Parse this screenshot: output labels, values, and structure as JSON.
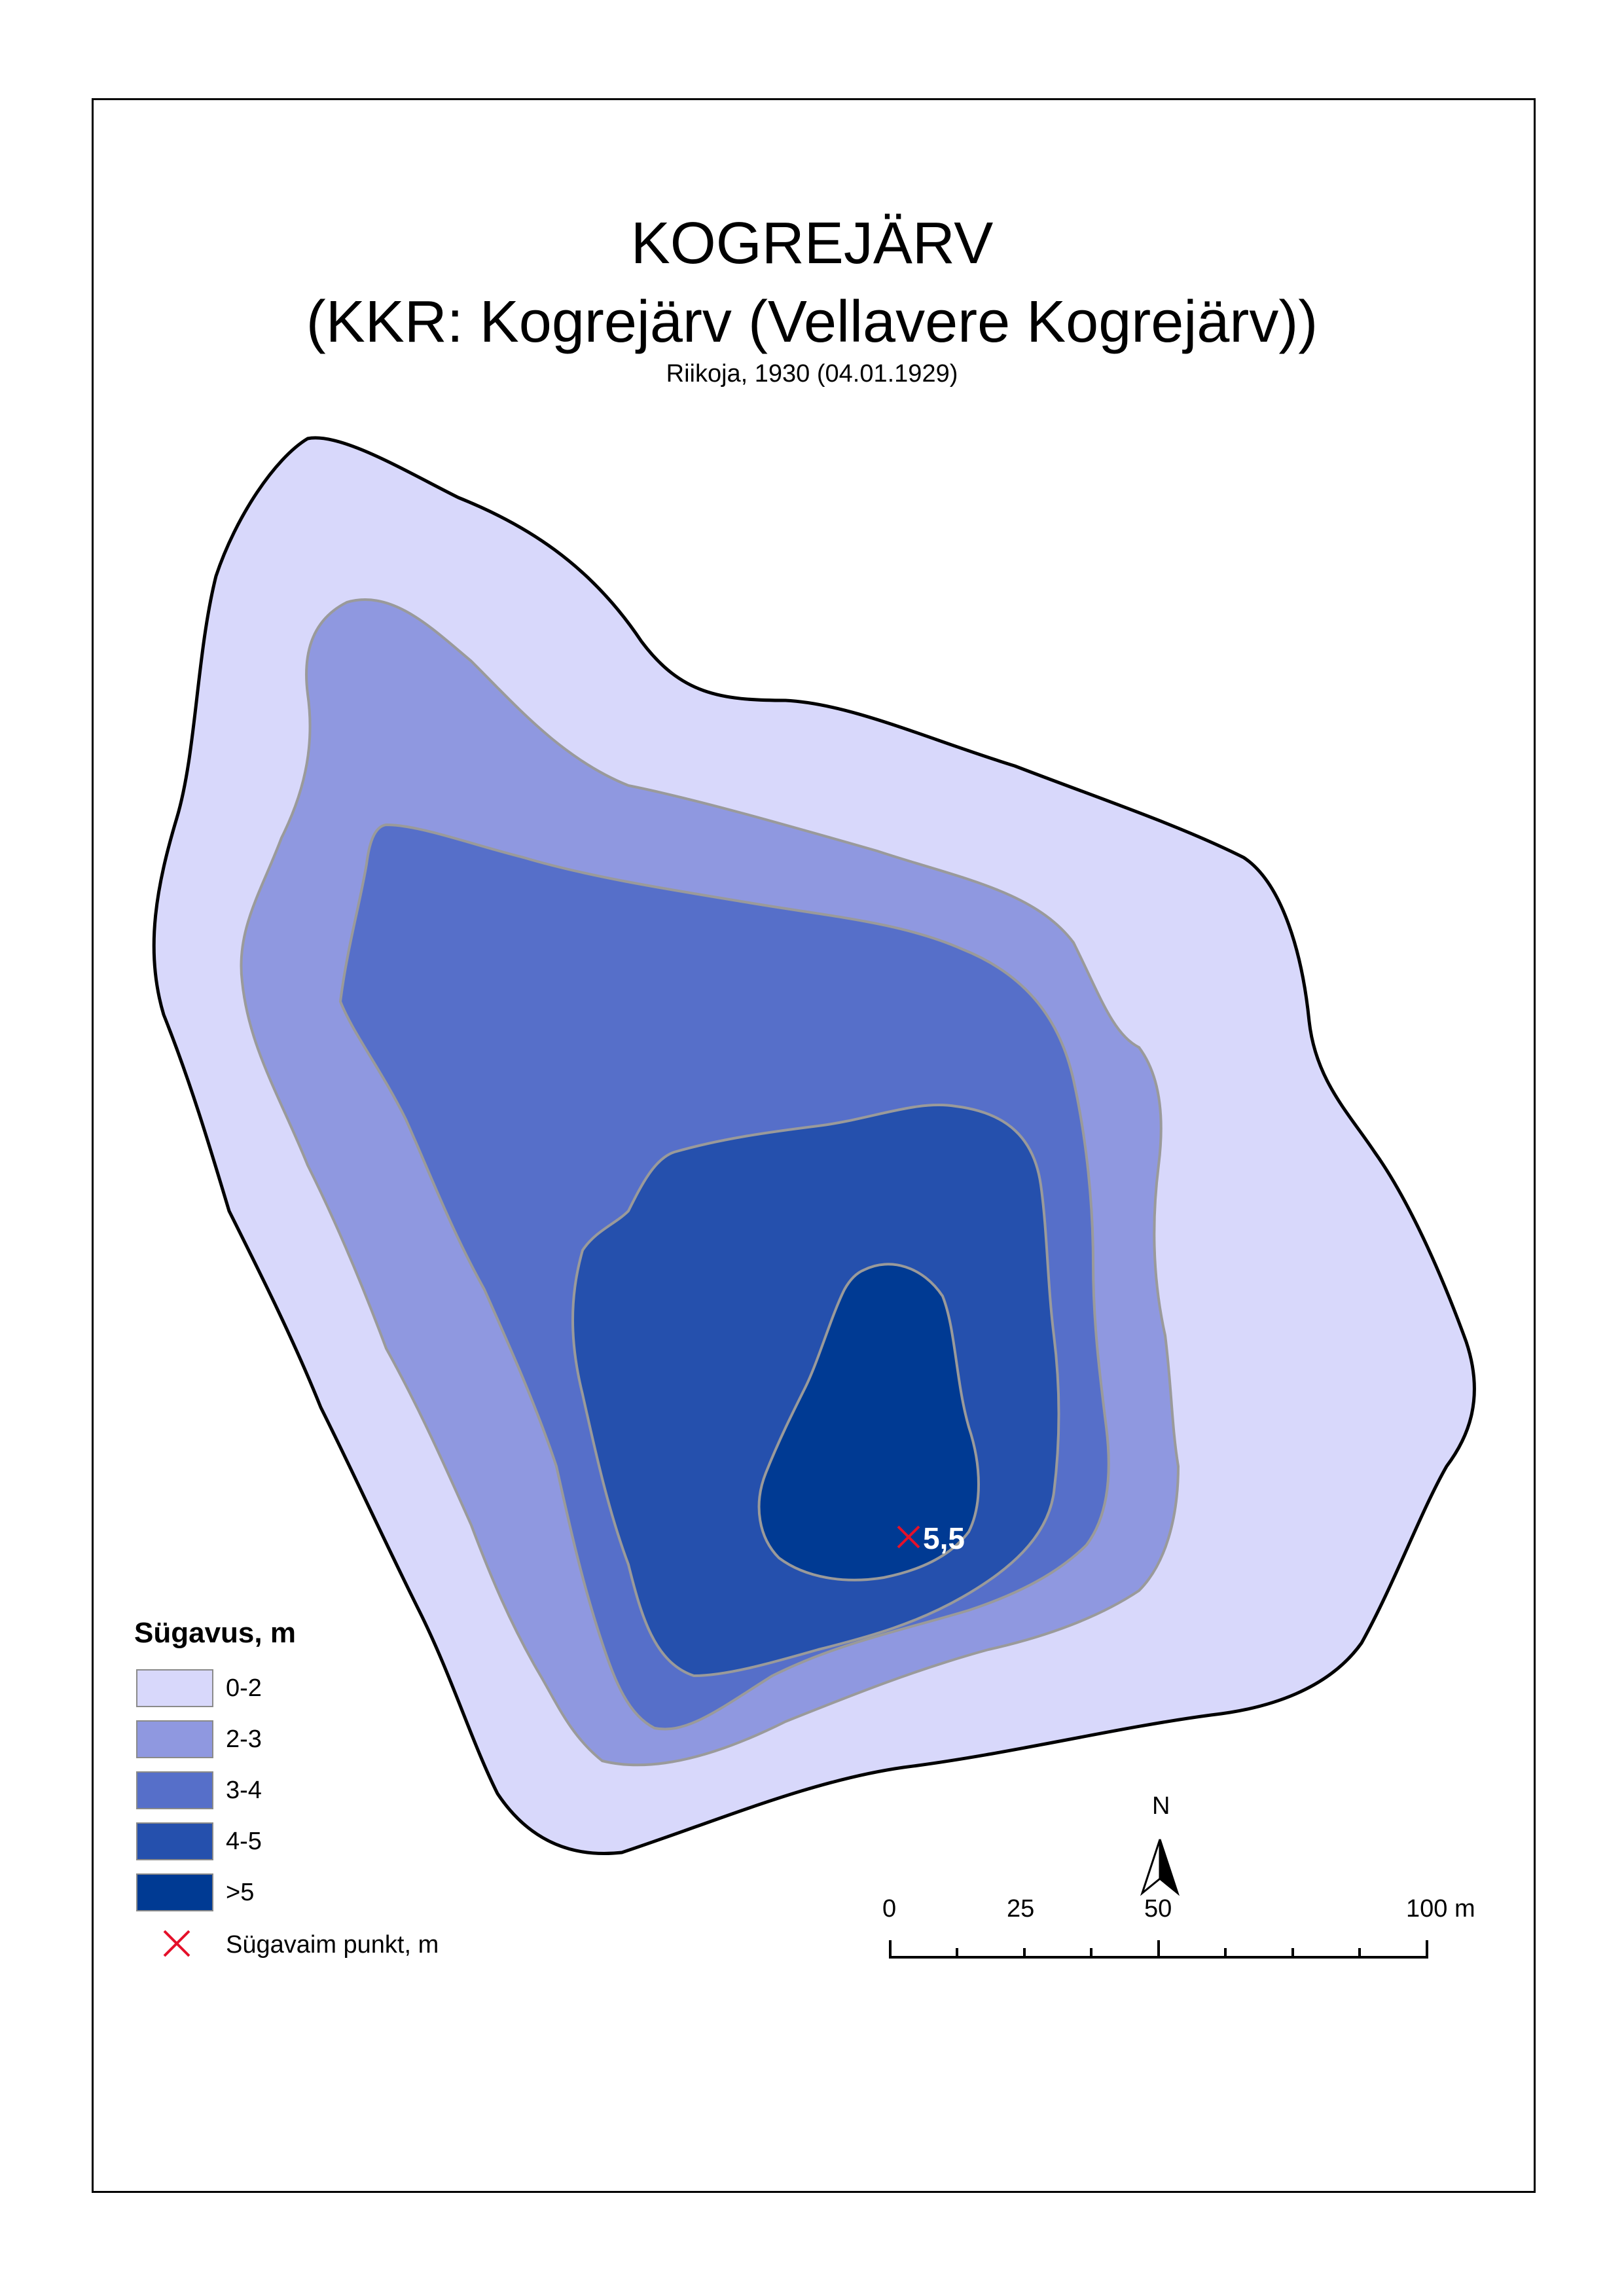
{
  "map": {
    "title": "KOGREJÄRV",
    "subtitle": "(KKR: Kogrejärv (Vellavere Kogrejärv))",
    "source": "Riikoja, 1930 (04.01.1929)",
    "deepest_point_label": "5,5",
    "deepest_point_value_m": 5.5
  },
  "legend": {
    "title": "Sügavus, m",
    "classes": [
      {
        "label": "0-2",
        "color": "#d8d8fb"
      },
      {
        "label": "2-3",
        "color": "#8f98e0"
      },
      {
        "label": "3-4",
        "color": "#566fc9"
      },
      {
        "label": "4-5",
        "color": "#2550ad"
      },
      {
        "label": ">5",
        "color": "#003a93"
      }
    ],
    "deepest_point": {
      "label": "Sügavaim punkt, m",
      "color": "#e5102a",
      "icon": "x-mark-icon"
    }
  },
  "scale_bar": {
    "labels": [
      "0",
      "25",
      "50",
      "100 m"
    ],
    "values_m": [
      0,
      25,
      50,
      100
    ]
  },
  "north_arrow": {
    "label": "N",
    "icon": "north-arrow-icon"
  },
  "colors": {
    "shoreline": "#000000",
    "contour": "#9a9a9a",
    "frame": "#000000"
  }
}
